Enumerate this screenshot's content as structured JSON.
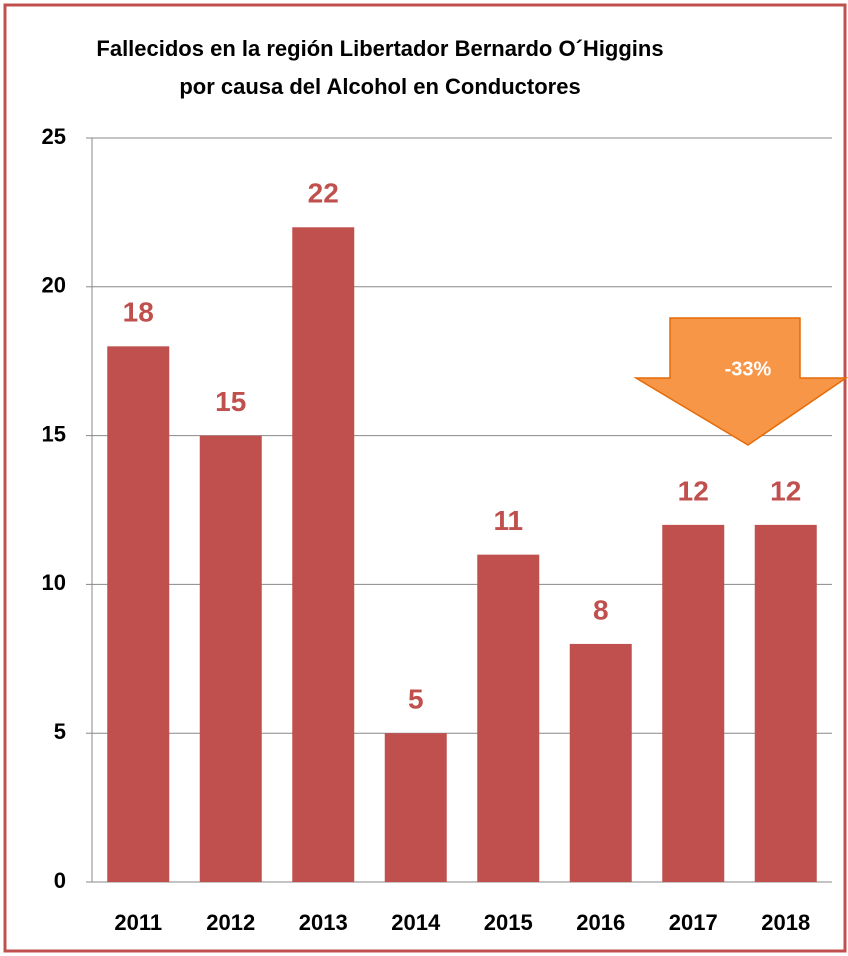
{
  "chart_data": {
    "type": "bar",
    "title": [
      "Fallecidos en la región Libertador Bernardo O´Higgins",
      "por causa del Alcohol en Conductores"
    ],
    "categories": [
      "2011",
      "2012",
      "2013",
      "2014",
      "2015",
      "2016",
      "2017",
      "2018"
    ],
    "values": [
      18,
      15,
      22,
      5,
      11,
      8,
      12,
      12
    ],
    "color": "#c0504d",
    "ylim": [
      0,
      25
    ],
    "yticks": [
      0,
      5,
      10,
      15,
      20,
      25
    ],
    "grid": true,
    "annotation": "-33%"
  }
}
